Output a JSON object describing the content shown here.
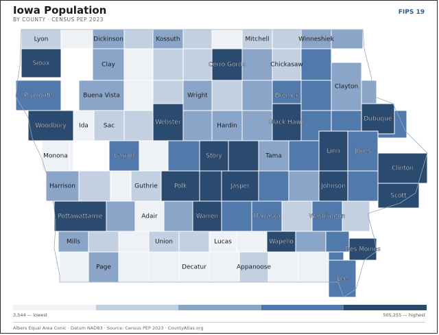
{
  "header": {
    "title": "Iowa Population",
    "subtitle": "BY COUNTY · CENSUS PEP 2023",
    "code": "FIPS 19"
  },
  "palette": {
    "c1": "#eef1f6",
    "c2": "#c3d0e2",
    "c3": "#8ba5c8",
    "c4": "#5279ab",
    "c5": "#2b4a70",
    "border": "#ffffff"
  },
  "legend": {
    "low_label": "3,544 — lowest",
    "high_label": "505,255 — highest",
    "bins": [
      "#eef1f6",
      "#c3d0e2",
      "#8ba5c8",
      "#5279ab",
      "#2b4a70"
    ]
  },
  "footer": "Albers Equal Area Conic · Datum NAD83 · Source: Census PEP 2023 · CountyAtlas.org",
  "counties": [
    {
      "name": "Lyon",
      "shade": 2
    },
    {
      "name": "Dickinson",
      "shade": 3
    },
    {
      "name": "Kossuth",
      "shade": 3
    },
    {
      "name": "Mitchell",
      "shade": 2
    },
    {
      "name": "Winneshiek",
      "shade": 3
    },
    {
      "name": "Sioux",
      "shade": 5
    },
    {
      "name": "Clay",
      "shade": 3
    },
    {
      "name": "Cerro Gordo",
      "shade": 5
    },
    {
      "name": "Chickasaw",
      "shade": 2
    },
    {
      "name": "Plymouth",
      "shade": 4
    },
    {
      "name": "Buena Vista",
      "shade": 3
    },
    {
      "name": "Wright",
      "shade": 3
    },
    {
      "name": "Bremer",
      "shade": 4
    },
    {
      "name": "Clayton",
      "shade": 3
    },
    {
      "name": "Woodbury",
      "shade": 5
    },
    {
      "name": "Ida",
      "shade": 1
    },
    {
      "name": "Sac",
      "shade": 2
    },
    {
      "name": "Webster",
      "shade": 5
    },
    {
      "name": "Hardin",
      "shade": 3
    },
    {
      "name": "Black Hawk",
      "shade": 5
    },
    {
      "name": "Dubuque",
      "shade": 5
    },
    {
      "name": "Monona",
      "shade": 1
    },
    {
      "name": "Carroll",
      "shade": 4
    },
    {
      "name": "Story",
      "shade": 5
    },
    {
      "name": "Tama",
      "shade": 3
    },
    {
      "name": "Linn",
      "shade": 5
    },
    {
      "name": "Jones",
      "shade": 4
    },
    {
      "name": "Clinton",
      "shade": 5
    },
    {
      "name": "Harrison",
      "shade": 3
    },
    {
      "name": "Guthrie",
      "shade": 2
    },
    {
      "name": "Polk",
      "shade": 5
    },
    {
      "name": "Jasper",
      "shade": 5
    },
    {
      "name": "Johnson",
      "shade": 5
    },
    {
      "name": "Scott",
      "shade": 5
    },
    {
      "name": "Pottawattamie",
      "shade": 5
    },
    {
      "name": "Adair",
      "shade": 1
    },
    {
      "name": "Warren",
      "shade": 5
    },
    {
      "name": "Mahaska",
      "shade": 4
    },
    {
      "name": "Washington",
      "shade": 4
    },
    {
      "name": "Mills",
      "shade": 3
    },
    {
      "name": "Union",
      "shade": 2
    },
    {
      "name": "Lucas",
      "shade": 1
    },
    {
      "name": "Wapello",
      "shade": 5
    },
    {
      "name": "Des Moines",
      "shade": 5
    },
    {
      "name": "Page",
      "shade": 3
    },
    {
      "name": "Decatur",
      "shade": 1
    },
    {
      "name": "Appanoose",
      "shade": 2
    },
    {
      "name": "Lee",
      "shade": 4
    }
  ]
}
